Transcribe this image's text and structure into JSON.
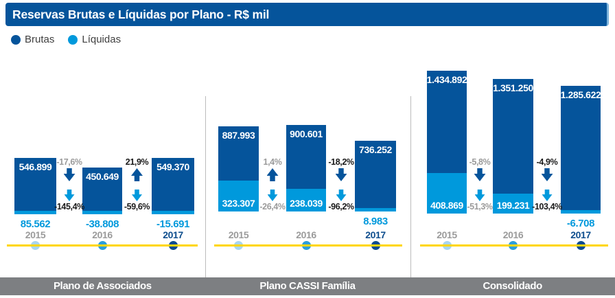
{
  "title": "Reservas Brutas e Líquidas por Plano - R$ mil",
  "legend": {
    "brutas": "Brutas",
    "liquidas": "Líquidas"
  },
  "colors": {
    "brand_dark_blue": "#05549b",
    "brand_light_blue": "#0099dc",
    "navy_2017": "#0d4d8d",
    "dot_2015": "#a9d6f0",
    "dot_2016": "#2d9fd8",
    "timeline_yellow": "#ffd600",
    "gray_text": "#9b9b9b",
    "dark_text": "#1a1a1a",
    "footer_gray": "#7d7f82",
    "divider_gray": "#bbbbbb"
  },
  "chart_data": [
    {
      "type": "bar",
      "title": "Plano de Associados",
      "categories": [
        "2015",
        "2016",
        "2017"
      ],
      "series": [
        {
          "name": "Brutas",
          "values": [
            546899,
            450649,
            549370
          ],
          "labels": [
            "546.899",
            "450.649",
            "549.370"
          ]
        },
        {
          "name": "Líquidas",
          "values": [
            85562,
            -38808,
            -15691
          ],
          "labels": [
            "85.562",
            "-38.808",
            "-15.691"
          ]
        }
      ],
      "changes": [
        {
          "brutas_pct": "-17,6%",
          "brutas_dir": "down",
          "brutas_emphasis": false,
          "liquidas_pct": "-145,4%",
          "liquidas_dir": "down",
          "liquidas_emphasis": true
        },
        {
          "brutas_pct": "21,9%",
          "brutas_dir": "up",
          "brutas_emphasis": true,
          "liquidas_pct": "-59,6%",
          "liquidas_dir": "down",
          "liquidas_emphasis": true
        }
      ]
    },
    {
      "type": "bar",
      "title": "Plano CASSI Família",
      "categories": [
        "2015",
        "2016",
        "2017"
      ],
      "series": [
        {
          "name": "Brutas",
          "values": [
            887993,
            900601,
            736252
          ],
          "labels": [
            "887.993",
            "900.601",
            "736.252"
          ]
        },
        {
          "name": "Líquidas",
          "values": [
            323307,
            238039,
            8983
          ],
          "labels": [
            "323.307",
            "238.039",
            "8.983"
          ]
        }
      ],
      "changes": [
        {
          "brutas_pct": "1,4%",
          "brutas_dir": "up",
          "brutas_emphasis": false,
          "liquidas_pct": "-26,4%",
          "liquidas_dir": "down",
          "liquidas_emphasis": false
        },
        {
          "brutas_pct": "-18,2%",
          "brutas_dir": "down",
          "brutas_emphasis": true,
          "liquidas_pct": "-96,2%",
          "liquidas_dir": "down",
          "liquidas_emphasis": true
        }
      ]
    },
    {
      "type": "bar",
      "title": "Consolidado",
      "categories": [
        "2015",
        "2016",
        "2017"
      ],
      "series": [
        {
          "name": "Brutas",
          "values": [
            1434892,
            1351250,
            1285622
          ],
          "labels": [
            "1.434.892",
            "1.351.250",
            "1.285.622"
          ]
        },
        {
          "name": "Líquidas",
          "values": [
            408869,
            199231,
            -6708
          ],
          "labels": [
            "408.869",
            "199.231",
            "-6.708"
          ]
        }
      ],
      "changes": [
        {
          "brutas_pct": "-5,8%",
          "brutas_dir": "down",
          "brutas_emphasis": false,
          "liquidas_pct": "-51,3%",
          "liquidas_dir": "down",
          "liquidas_emphasis": false
        },
        {
          "brutas_pct": "-4,9%",
          "brutas_dir": "down",
          "brutas_emphasis": true,
          "liquidas_pct": "-103,4%",
          "liquidas_dir": "down",
          "liquidas_emphasis": true
        }
      ]
    }
  ]
}
